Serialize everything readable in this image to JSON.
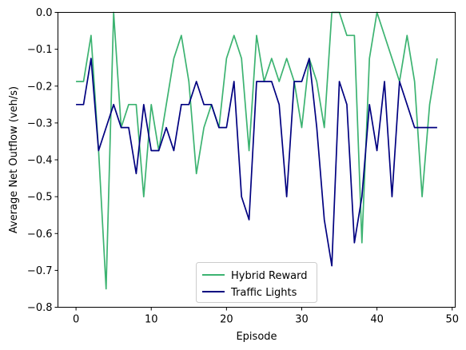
{
  "chart_data": {
    "type": "line",
    "xlabel": "Episode",
    "ylabel": "Average Net Outflow (veh/s)",
    "xlim": [
      -2.4,
      50.4
    ],
    "ylim": [
      -0.8,
      0.0
    ],
    "xticks": [
      0,
      10,
      20,
      30,
      40,
      50
    ],
    "yticks": [
      -0.8,
      -0.7,
      -0.6,
      -0.5,
      -0.4,
      -0.3,
      -0.2,
      -0.1,
      0.0
    ],
    "xtick_labels": [
      "0",
      "10",
      "20",
      "30",
      "40",
      "50"
    ],
    "ytick_labels": [
      "−0.8",
      "−0.7",
      "−0.6",
      "−0.5",
      "−0.4",
      "−0.3",
      "−0.2",
      "−0.1",
      "0.0"
    ],
    "grid": false,
    "legend_position": "bottom-center",
    "x": [
      0,
      1,
      2,
      3,
      4,
      5,
      6,
      7,
      8,
      9,
      10,
      11,
      12,
      13,
      14,
      15,
      16,
      17,
      18,
      19,
      20,
      21,
      22,
      23,
      24,
      25,
      26,
      27,
      28,
      29,
      30,
      31,
      32,
      33,
      34,
      35,
      36,
      37,
      38,
      39,
      40,
      41,
      42,
      43,
      44,
      45,
      46,
      47,
      48
    ],
    "series": [
      {
        "name": "Hybrid Reward",
        "color": "#3cb371",
        "values": [
          -0.1875,
          -0.1875,
          -0.0625,
          -0.375,
          -0.75,
          0.0,
          -0.3125,
          -0.25,
          -0.25,
          -0.5,
          -0.25,
          -0.375,
          -0.25,
          -0.125,
          -0.0625,
          -0.1875,
          -0.4375,
          -0.3125,
          -0.25,
          -0.3125,
          -0.125,
          -0.0625,
          -0.125,
          -0.375,
          -0.0625,
          -0.1875,
          -0.125,
          -0.1875,
          -0.125,
          -0.1875,
          -0.3125,
          -0.125,
          -0.1875,
          -0.3125,
          0.0,
          0.0,
          -0.0625,
          -0.0625,
          -0.625,
          -0.125,
          0.0,
          -0.0625,
          -0.125,
          -0.1875,
          -0.0625,
          -0.1875,
          -0.5,
          -0.25,
          -0.125
        ]
      },
      {
        "name": "Traffic Lights",
        "color": "#000080",
        "values": [
          -0.25,
          -0.25,
          -0.125,
          -0.375,
          -0.3125,
          -0.25,
          -0.3125,
          -0.3125,
          -0.4375,
          -0.25,
          -0.375,
          -0.375,
          -0.3125,
          -0.375,
          -0.25,
          -0.25,
          -0.1875,
          -0.25,
          -0.25,
          -0.3125,
          -0.3125,
          -0.1875,
          -0.5,
          -0.5625,
          -0.1875,
          -0.1875,
          -0.1875,
          -0.25,
          -0.5,
          -0.1875,
          -0.1875,
          -0.125,
          -0.3125,
          -0.5625,
          -0.6875,
          -0.1875,
          -0.25,
          -0.625,
          -0.5,
          -0.25,
          -0.375,
          -0.1875,
          -0.5,
          -0.1875,
          -0.25,
          -0.3125,
          -0.3125,
          -0.3125,
          -0.3125
        ]
      }
    ]
  }
}
